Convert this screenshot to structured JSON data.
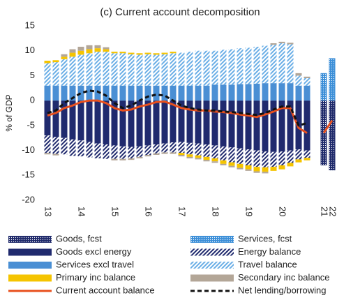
{
  "chart_data": {
    "type": "bar",
    "title": "(c) Current  account decomposition",
    "y_label": "% of GDP",
    "categories": [
      "13",
      null,
      null,
      null,
      "14",
      null,
      null,
      null,
      "15",
      null,
      null,
      null,
      "16",
      null,
      null,
      null,
      "17",
      null,
      null,
      null,
      "18",
      null,
      null,
      null,
      "19",
      null,
      null,
      null,
      "20",
      null,
      null,
      null,
      null,
      "21",
      "22"
    ],
    "ylim": [
      -20,
      15
    ],
    "yticks": [
      -20,
      -15,
      -10,
      -5,
      0,
      5,
      10,
      15
    ],
    "grid": false,
    "series": [
      {
        "name": "Goods, fcst",
        "kind": "bar",
        "pattern": "dots",
        "color": "#1f2a6b",
        "values": [
          null,
          null,
          null,
          null,
          null,
          null,
          null,
          null,
          null,
          null,
          null,
          null,
          null,
          null,
          null,
          null,
          null,
          null,
          null,
          null,
          null,
          null,
          null,
          null,
          null,
          null,
          null,
          null,
          null,
          null,
          null,
          null,
          null,
          -13,
          -14
        ]
      },
      {
        "name": "Services, fcst",
        "kind": "bar",
        "pattern": "dots",
        "color": "#3c8fd8",
        "values": [
          null,
          null,
          null,
          null,
          null,
          null,
          null,
          null,
          null,
          null,
          null,
          null,
          null,
          null,
          null,
          null,
          null,
          null,
          null,
          null,
          null,
          null,
          null,
          null,
          null,
          null,
          null,
          null,
          null,
          null,
          null,
          null,
          null,
          5.5,
          8.5
        ]
      },
      {
        "name": "Goods excl energy",
        "kind": "bar",
        "color": "#202a6e",
        "values": [
          -7,
          -7.3,
          -7.5,
          -7.8,
          -8,
          -8.3,
          -8.6,
          -8.8,
          -9,
          -9.2,
          -9.3,
          -9.2,
          -9,
          -8.8,
          -8.6,
          -8.4,
          -8.3,
          -8.5,
          -8.6,
          -8.8,
          -9,
          -9.2,
          -9.4,
          -9.6,
          -9.8,
          -10,
          -10.2,
          -10.3,
          -10.2,
          -10,
          -9.8,
          -10,
          null,
          null,
          null
        ]
      },
      {
        "name": "Energy balance",
        "kind": "bar",
        "pattern": "hatch",
        "color": "#202a6e",
        "values": [
          -3.5,
          -3.4,
          -3.3,
          -3.3,
          -3.2,
          -3.1,
          -3,
          -2.9,
          -2.7,
          -2.5,
          -2.3,
          -2.1,
          -1.9,
          -1.8,
          -1.8,
          -2,
          -2.2,
          -2.3,
          -2.4,
          -2.5,
          -2.6,
          -2.8,
          -3,
          -3.1,
          -3.2,
          -3.3,
          -3.2,
          -3,
          -2.8,
          -2.5,
          -2,
          -1.5,
          null,
          null,
          null
        ]
      },
      {
        "name": "Services excl travel",
        "kind": "bar",
        "color": "#4a8fd4",
        "values": [
          3,
          3,
          3,
          3,
          3,
          3,
          3,
          3,
          3,
          3,
          3,
          3,
          3,
          3,
          3,
          3,
          3,
          3,
          3,
          3,
          3.2,
          3.2,
          3.2,
          3.3,
          3.3,
          3.4,
          3.5,
          3.5,
          3.5,
          3.5,
          3,
          3,
          null,
          null,
          null
        ]
      },
      {
        "name": "Travel balance",
        "kind": "bar",
        "pattern": "hatch",
        "color": "#6aaee6",
        "values": [
          4.5,
          4.7,
          5.3,
          5.8,
          6.2,
          6.5,
          6.8,
          6.8,
          6.5,
          6.5,
          6.3,
          6.2,
          6.3,
          6.2,
          6.3,
          6.5,
          6.6,
          6.8,
          7,
          7,
          6.8,
          7,
          7.1,
          7.2,
          7.3,
          7.4,
          7.5,
          7.7,
          8,
          7.8,
          2,
          1.5,
          null,
          null,
          null
        ]
      },
      {
        "name": "Primary inc balance",
        "kind": "bar",
        "color": "#f5c400",
        "values": [
          0.5,
          0.4,
          0.5,
          0.8,
          0.8,
          0.8,
          0.7,
          0.5,
          0.3,
          0.3,
          0.3,
          0.3,
          0.3,
          0.3,
          0.3,
          0.3,
          -0.4,
          -0.5,
          -0.5,
          -0.6,
          -0.6,
          -0.7,
          -0.7,
          -0.8,
          -0.8,
          -0.9,
          -0.9,
          -0.8,
          -0.8,
          -0.7,
          -0.6,
          -0.5,
          null,
          null,
          null
        ]
      },
      {
        "name": "Secondary inc balance",
        "kind": "bar",
        "color": "#b3a697",
        "values": [
          -0.3,
          -0.3,
          0.5,
          0.7,
          0.8,
          0.8,
          0.6,
          0.4,
          -0.3,
          -0.3,
          -0.3,
          -0.3,
          -0.3,
          -0.3,
          -0.3,
          -0.3,
          -0.3,
          -0.3,
          -0.3,
          -0.3,
          -0.3,
          -0.3,
          -0.3,
          -0.3,
          -0.3,
          -0.3,
          -0.3,
          0.3,
          0.3,
          0.3,
          0.5,
          0.3,
          null,
          null,
          null
        ]
      },
      {
        "name": "Current account balance",
        "kind": "line",
        "color": "#e8501e",
        "values": [
          -3,
          -2.5,
          -1.5,
          -1,
          -0.3,
          0,
          0,
          -0.5,
          -1.5,
          -2,
          -1.8,
          -1.2,
          -0.8,
          -0.3,
          -0.2,
          -0.8,
          -1.5,
          -1.8,
          -2,
          -2,
          -2.2,
          -2.3,
          -2.5,
          -2.8,
          -3,
          -3.3,
          -2.8,
          -2.2,
          -1.5,
          -1.5,
          -5.5,
          -6.5,
          null,
          -6.5,
          -4
        ]
      },
      {
        "name": "Net lending/borrowing",
        "kind": "line",
        "dash": true,
        "color": "#111111",
        "values": [
          -2.5,
          -2,
          -0.5,
          0.5,
          1.5,
          2,
          1.8,
          1,
          -0.5,
          -1.5,
          -1,
          0,
          0.8,
          1.2,
          1,
          0,
          -1,
          -1.5,
          -1.8,
          -2,
          -2,
          -2.2,
          -2.3,
          -2.5,
          -2.7,
          -2.9,
          -2.5,
          -1.8,
          -1.2,
          -1.2,
          -5,
          -4.5,
          null,
          null,
          null
        ]
      }
    ]
  }
}
